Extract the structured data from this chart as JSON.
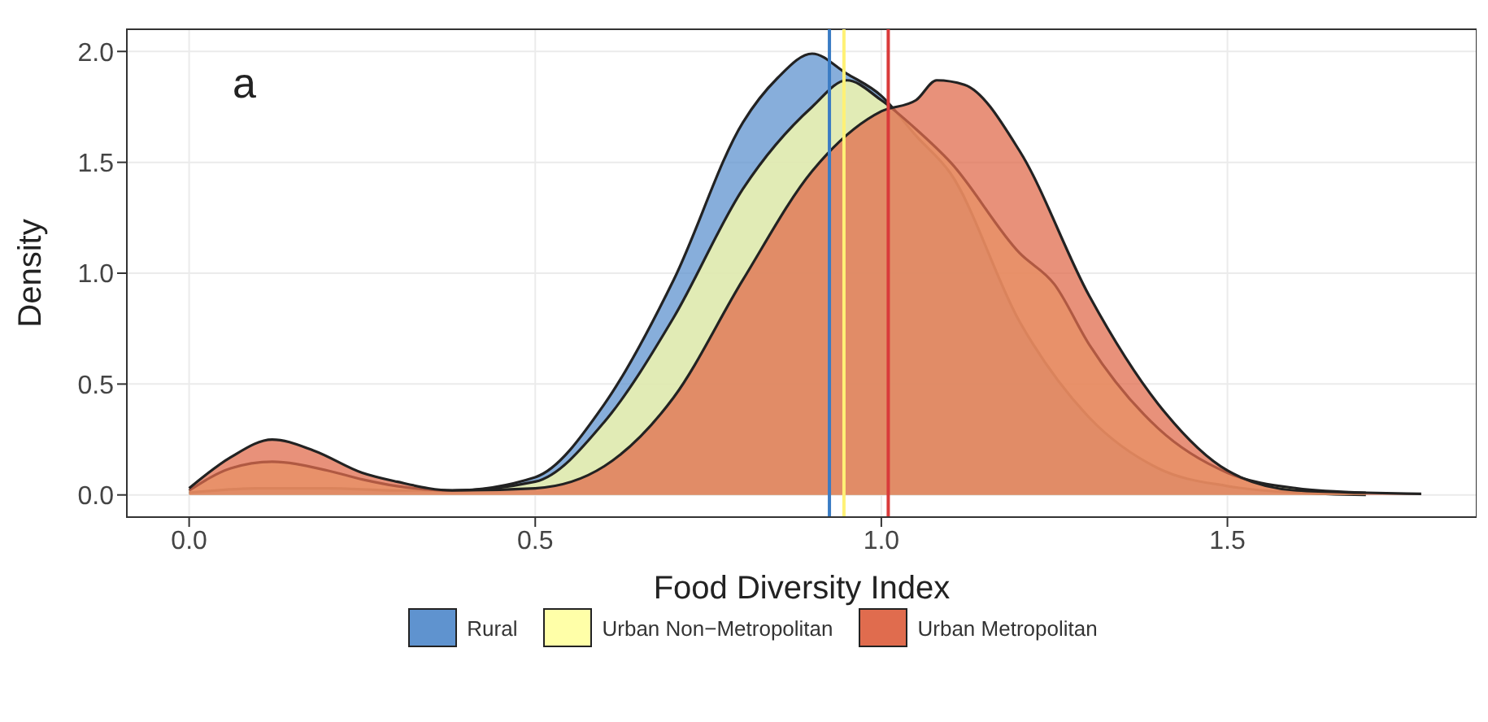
{
  "chart_data": {
    "type": "area",
    "xlabel": "Food Diversity Index",
    "ylabel": "Density",
    "annotations": [
      "a"
    ],
    "xlim": [
      -0.09,
      1.86
    ],
    "ylim": [
      -0.1,
      2.1
    ],
    "xticks": [
      {
        "value": 0,
        "label": "0.0"
      },
      0.5,
      {
        "value": 1,
        "label": "1.0"
      },
      1.5
    ],
    "yticks": [
      {
        "value": 0,
        "label": "0.0"
      },
      0.5,
      {
        "value": 1,
        "label": "1.0"
      },
      1.5,
      {
        "value": 2,
        "label": "2.0"
      }
    ],
    "grid": true,
    "legend": "bottom",
    "series": [
      {
        "name": "Rural",
        "color": "#5f93cf",
        "x": [
          0,
          0.1,
          0.2,
          0.3,
          0.38,
          0.5,
          0.6,
          0.7,
          0.8,
          0.85,
          0.9,
          0.95,
          1.0,
          1.05,
          1.1,
          1.2,
          1.3,
          1.4,
          1.5,
          1.6,
          1.7
        ],
        "values": [
          0.01,
          0.03,
          0.03,
          0.02,
          0.02,
          0.08,
          0.41,
          0.97,
          1.68,
          1.88,
          1.99,
          1.9,
          1.8,
          1.62,
          1.45,
          0.78,
          0.35,
          0.12,
          0.04,
          0.01,
          0.0
        ]
      },
      {
        "name": "Urban Non−Metropolitan",
        "color": "#ffffa8",
        "x": [
          0,
          0.06,
          0.12,
          0.2,
          0.25,
          0.3,
          0.38,
          0.5,
          0.6,
          0.7,
          0.8,
          0.9,
          0.95,
          1.0,
          1.05,
          1.1,
          1.2,
          1.25,
          1.3,
          1.4,
          1.5,
          1.6,
          1.7
        ],
        "values": [
          0.02,
          0.12,
          0.15,
          0.11,
          0.07,
          0.04,
          0.02,
          0.06,
          0.33,
          0.8,
          1.38,
          1.75,
          1.87,
          1.78,
          1.65,
          1.5,
          1.09,
          0.95,
          0.68,
          0.3,
          0.1,
          0.03,
          0.01
        ]
      },
      {
        "name": "Urban Metropolitan",
        "color": "#e06c4e",
        "x": [
          0,
          0.06,
          0.12,
          0.18,
          0.25,
          0.3,
          0.38,
          0.5,
          0.6,
          0.7,
          0.8,
          0.9,
          1.0,
          1.05,
          1.08,
          1.12,
          1.2,
          1.3,
          1.4,
          1.5,
          1.6,
          1.7,
          1.78
        ],
        "values": [
          0.03,
          0.17,
          0.25,
          0.2,
          0.1,
          0.06,
          0.02,
          0.03,
          0.13,
          0.44,
          0.97,
          1.46,
          1.73,
          1.78,
          1.87,
          1.85,
          1.55,
          0.9,
          0.41,
          0.11,
          0.02,
          0.01,
          0.005
        ]
      }
    ],
    "ref_lines": [
      {
        "axis": "x",
        "value": 0.925,
        "color": "#3a7cc4"
      },
      {
        "axis": "x",
        "value": 0.946,
        "color": "#fff176"
      },
      {
        "axis": "x",
        "value": 1.01,
        "color": "#d93a3a"
      }
    ]
  }
}
